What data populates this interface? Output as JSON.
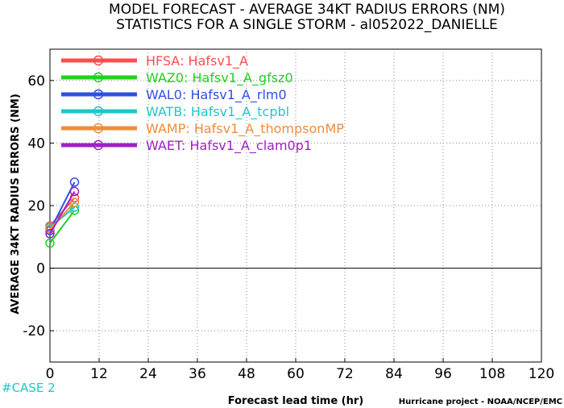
{
  "chart_data": {
    "type": "line",
    "title": "MODEL FORECAST - AVERAGE 34KT RADIUS ERRORS (NM)",
    "subtitle": "STATISTICS FOR A SINGLE STORM - al052022_DANIELLE",
    "xlabel": "Forecast lead time (hr)",
    "ylabel": "AVERAGE 34KT RADIUS ERRORS (NM)",
    "xlim": [
      0,
      120
    ],
    "ylim": [
      -30,
      70
    ],
    "x_ticks": [
      0,
      12,
      24,
      36,
      48,
      60,
      72,
      84,
      96,
      108,
      120
    ],
    "y_ticks": [
      -20,
      0,
      20,
      40,
      60
    ],
    "grid": true,
    "zero_line": true,
    "legend_position": "top-left",
    "series": [
      {
        "code": "HFSA:",
        "name": "Hafsv1_A",
        "color": "#ff4d4d",
        "x": [
          0,
          6
        ],
        "y": [
          13.5,
          22.5
        ]
      },
      {
        "code": "WAZ0:",
        "name": "Hafsv1_A_gfsz0",
        "color": "#1fd21f",
        "x": [
          0,
          6
        ],
        "y": [
          8,
          18.5
        ]
      },
      {
        "code": "WAL0:",
        "name": "Hafsv1_A_rlm0",
        "color": "#3050e0",
        "x": [
          0,
          6
        ],
        "y": [
          12,
          27.5
        ]
      },
      {
        "code": "WATB:",
        "name": "Hafsv1_A_tcpbl",
        "color": "#1ec8c8",
        "x": [
          0,
          6
        ],
        "y": [
          13,
          19.5
        ]
      },
      {
        "code": "WAMP:",
        "name": "Hafsv1_A_thompsonMP",
        "color": "#f08c3a",
        "x": [
          0,
          6
        ],
        "y": [
          12.5,
          21
        ]
      },
      {
        "code": "WAET:",
        "name": "Hafsv1_A_clam0p1",
        "color": "#a020c8",
        "x": [
          0,
          6
        ],
        "y": [
          11,
          24.5
        ]
      }
    ]
  },
  "case_label": "#CASE 2",
  "footer": "Hurricane project - NOAA/NCEP/EMC"
}
